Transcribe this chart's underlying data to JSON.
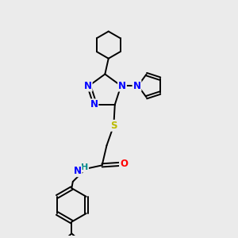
{
  "background_color": "#ebebeb",
  "bond_color": "#000000",
  "atom_colors": {
    "N": "#0000ff",
    "O": "#ff0000",
    "S": "#bbbb00",
    "H": "#008b8b",
    "C": "#000000"
  },
  "figsize": [
    3.0,
    3.0
  ],
  "dpi": 100
}
